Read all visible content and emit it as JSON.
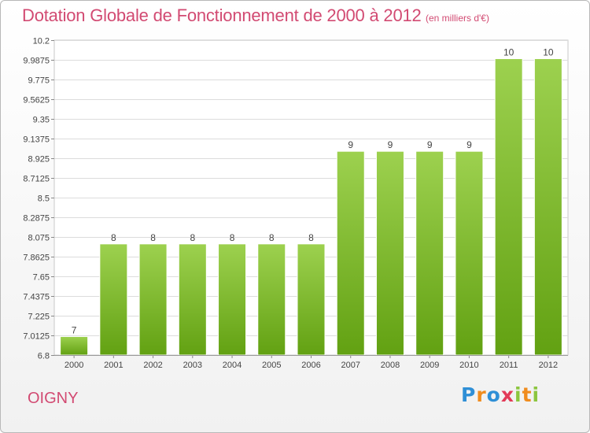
{
  "header": {
    "title": "Dotation Globale de Fonctionnement de 2000 à 2012",
    "unit": "(en milliers d'€)"
  },
  "footer": {
    "commune": "OIGNY",
    "logo_text": "Proxiti"
  },
  "colors": {
    "title": "#d24a72",
    "bar_top": "#9dd14f",
    "bar_bottom": "#62a112",
    "grid": "#dcdcdc"
  },
  "chart_data": {
    "type": "bar",
    "title": "Dotation Globale de Fonctionnement de 2000 à 2012",
    "subtitle": "(en milliers d'€)",
    "categories": [
      "2000",
      "2001",
      "2002",
      "2003",
      "2004",
      "2005",
      "2006",
      "2007",
      "2008",
      "2009",
      "2010",
      "2011",
      "2012"
    ],
    "values": [
      7,
      8,
      8,
      8,
      8,
      8,
      8,
      9,
      9,
      9,
      9,
      10,
      10
    ],
    "data_labels": [
      "7",
      "8",
      "8",
      "8",
      "8",
      "8",
      "8",
      "9",
      "9",
      "9",
      "9",
      "10",
      "10"
    ],
    "ylim": [
      6.8,
      10.2
    ],
    "yticks": [
      6.8,
      7.0125,
      7.225,
      7.4375,
      7.65,
      7.8625,
      8.075,
      8.2875,
      8.5,
      8.7125,
      8.925,
      9.1375,
      9.35,
      9.5625,
      9.775,
      9.9875,
      10.2
    ],
    "ytick_labels": [
      "6.8",
      "7.0125",
      "7.225",
      "7.4375",
      "7.65",
      "7.8625",
      "8.075",
      "8.2875",
      "8.5",
      "8.7125",
      "8.925",
      "9.1375",
      "9.35",
      "9.5625",
      "9.775",
      "9.9875",
      "10.2"
    ],
    "xlabel": "",
    "ylabel": "",
    "grid": true,
    "legend": "none"
  }
}
